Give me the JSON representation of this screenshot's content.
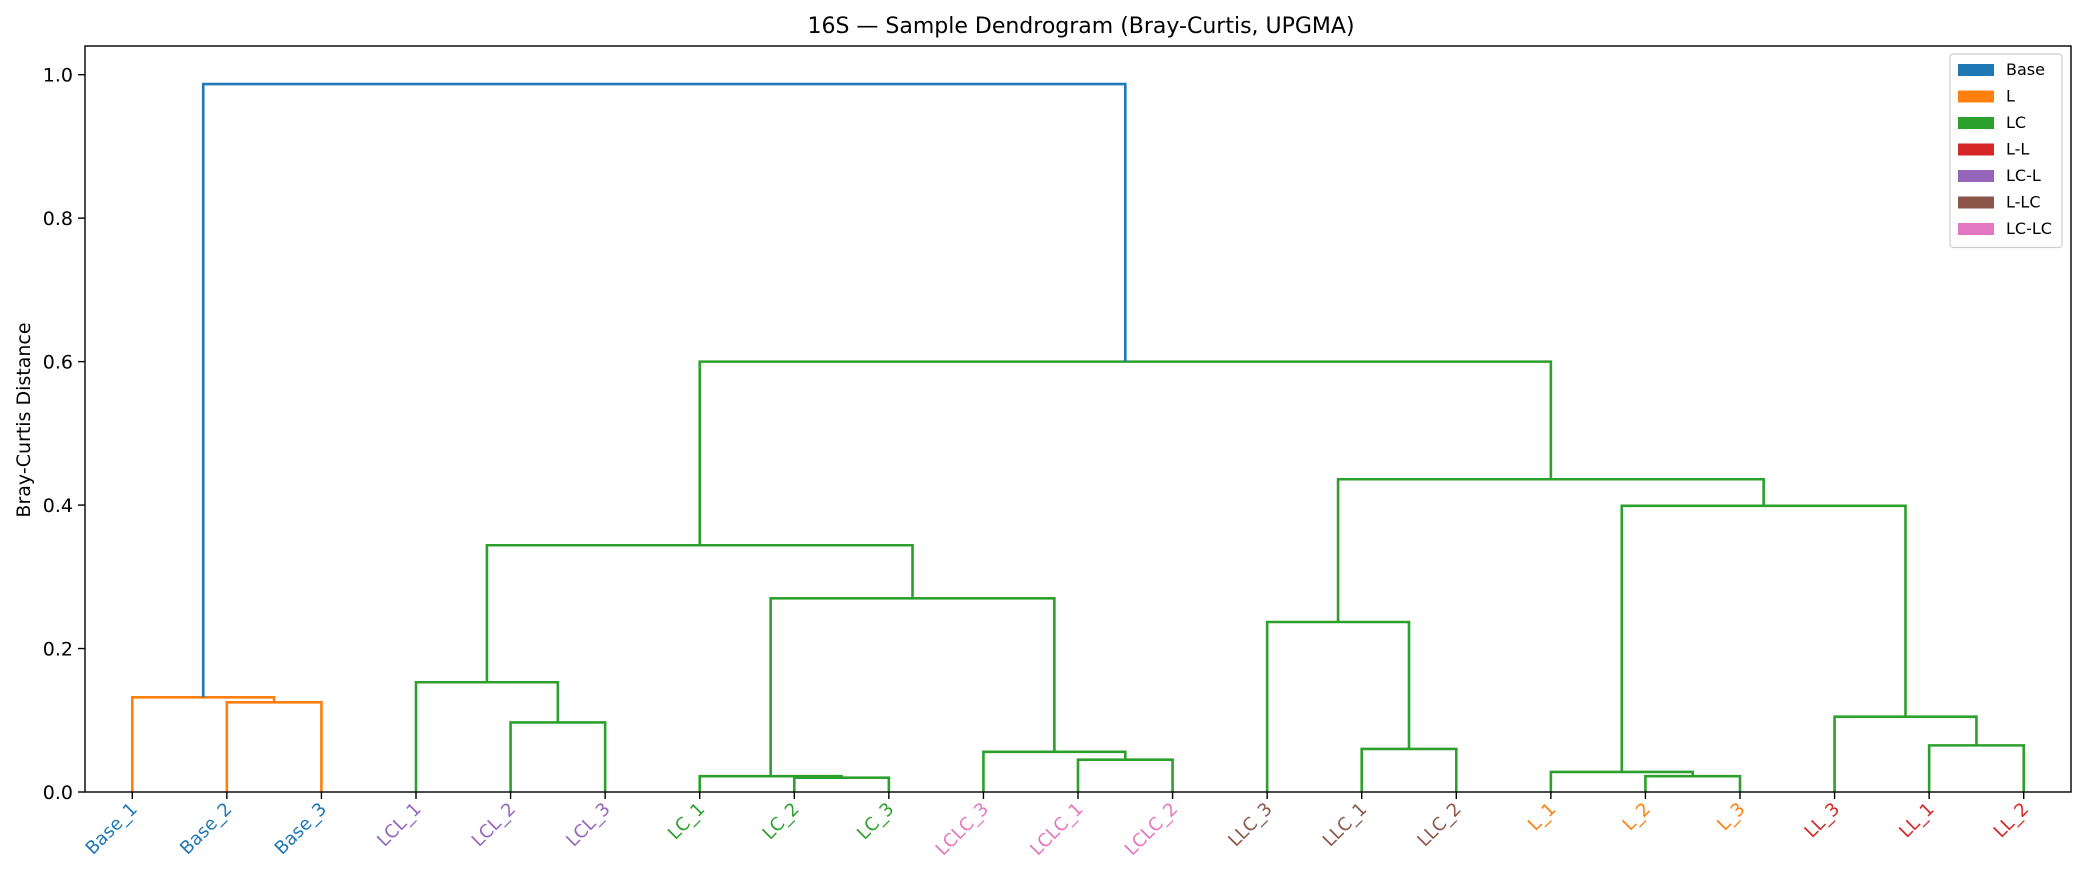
{
  "chart_data": {
    "type": "dendrogram",
    "title": "16S — Sample Dendrogram (Bray-Curtis, UPGMA)",
    "xlabel": "",
    "ylabel": "Bray-Curtis Distance",
    "ylim": [
      0,
      1.04
    ],
    "yticks": [
      "0.0",
      "0.2",
      "0.4",
      "0.6",
      "0.8",
      "1.0"
    ],
    "grid": false,
    "legend_position": "top-right",
    "legend": [
      {
        "label": "Base",
        "color": "#1f77b4"
      },
      {
        "label": "L",
        "color": "#ff7f0e"
      },
      {
        "label": "LC",
        "color": "#2ca02c"
      },
      {
        "label": "L-L",
        "color": "#d62728"
      },
      {
        "label": "LC-L",
        "color": "#9467bd"
      },
      {
        "label": "L-LC",
        "color": "#8c564b"
      },
      {
        "label": "LC-LC",
        "color": "#e377c2"
      }
    ],
    "leaves": [
      {
        "label": "Base_1",
        "color": "#1f77b4"
      },
      {
        "label": "Base_2",
        "color": "#1f77b4"
      },
      {
        "label": "Base_3",
        "color": "#1f77b4"
      },
      {
        "label": "LCL_1",
        "color": "#9467bd"
      },
      {
        "label": "LCL_2",
        "color": "#9467bd"
      },
      {
        "label": "LCL_3",
        "color": "#9467bd"
      },
      {
        "label": "LC_1",
        "color": "#2ca02c"
      },
      {
        "label": "LC_2",
        "color": "#2ca02c"
      },
      {
        "label": "LC_3",
        "color": "#2ca02c"
      },
      {
        "label": "LCLC_3",
        "color": "#e377c2"
      },
      {
        "label": "LCLC_1",
        "color": "#e377c2"
      },
      {
        "label": "LCLC_2",
        "color": "#e377c2"
      },
      {
        "label": "LLC_3",
        "color": "#8c564b"
      },
      {
        "label": "LLC_1",
        "color": "#8c564b"
      },
      {
        "label": "LLC_2",
        "color": "#8c564b"
      },
      {
        "label": "L_1",
        "color": "#ff7f0e"
      },
      {
        "label": "L_2",
        "color": "#ff7f0e"
      },
      {
        "label": "L_3",
        "color": "#ff7f0e"
      },
      {
        "label": "LL_3",
        "color": "#d62728"
      },
      {
        "label": "LL_1",
        "color": "#d62728"
      },
      {
        "label": "LL_2",
        "color": "#d62728"
      }
    ],
    "links": [
      {
        "x1": 1,
        "x2": 2,
        "height": 0.125,
        "color": "#ff7f0e"
      },
      {
        "x1": 0,
        "x2": 1.5,
        "height": 0.132,
        "color": "#ff7f0e"
      },
      {
        "x1": 4,
        "x2": 5,
        "height": 0.097,
        "color": "#2ca02c"
      },
      {
        "x1": 3,
        "x2": 4.5,
        "height": 0.153,
        "color": "#2ca02c"
      },
      {
        "x1": 7,
        "x2": 8,
        "height": 0.02,
        "color": "#2ca02c"
      },
      {
        "x1": 6,
        "x2": 7.5,
        "height": 0.022,
        "color": "#2ca02c"
      },
      {
        "x1": 10,
        "x2": 11,
        "height": 0.045,
        "color": "#2ca02c"
      },
      {
        "x1": 9,
        "x2": 10.5,
        "height": 0.056,
        "color": "#2ca02c"
      },
      {
        "x1": 6.75,
        "x2": 9.75,
        "height": 0.27,
        "color": "#2ca02c"
      },
      {
        "x1": 3.75,
        "x2": 8.25,
        "height": 0.344,
        "color": "#2ca02c"
      },
      {
        "x1": 13,
        "x2": 14,
        "height": 0.06,
        "color": "#2ca02c"
      },
      {
        "x1": 12,
        "x2": 13.5,
        "height": 0.237,
        "color": "#2ca02c"
      },
      {
        "x1": 16,
        "x2": 17,
        "height": 0.022,
        "color": "#2ca02c"
      },
      {
        "x1": 15,
        "x2": 16.5,
        "height": 0.028,
        "color": "#2ca02c"
      },
      {
        "x1": 19,
        "x2": 20,
        "height": 0.065,
        "color": "#2ca02c"
      },
      {
        "x1": 18,
        "x2": 19.5,
        "height": 0.105,
        "color": "#2ca02c"
      },
      {
        "x1": 15.75,
        "x2": 18.75,
        "height": 0.399,
        "color": "#2ca02c"
      },
      {
        "x1": 12.75,
        "x2": 17.25,
        "height": 0.436,
        "color": "#2ca02c"
      },
      {
        "x1": 6,
        "x2": 15,
        "height": 0.6,
        "color": "#2ca02c"
      },
      {
        "x1": 0.75,
        "x2": 10.5,
        "height": 0.987,
        "color": "#1f77b4"
      }
    ]
  }
}
